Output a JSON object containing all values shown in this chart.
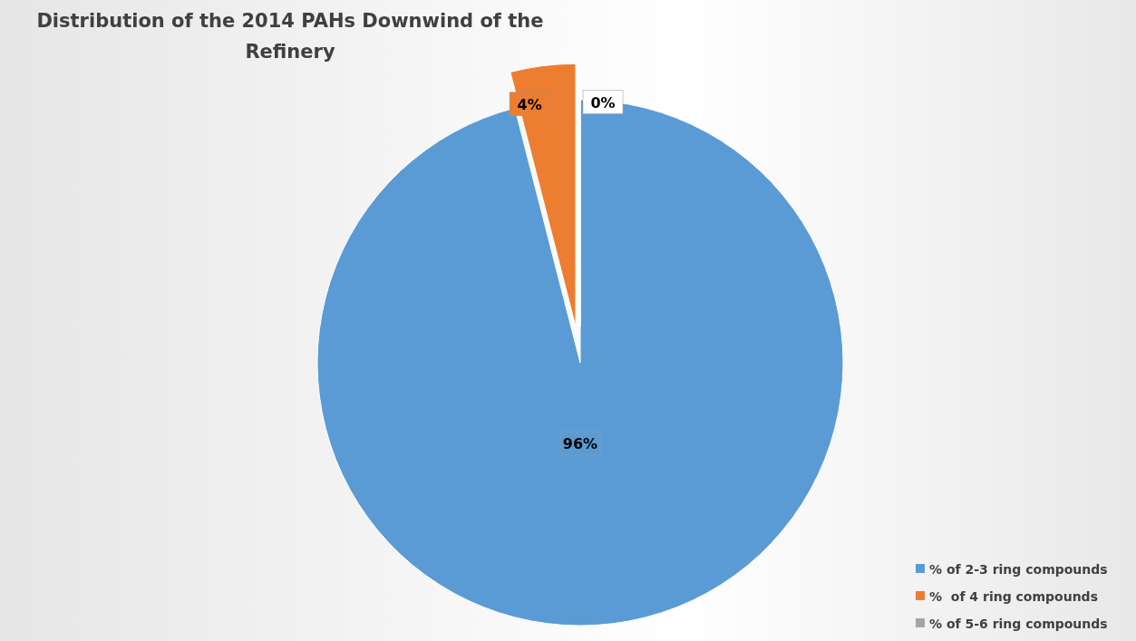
{
  "chart_data": {
    "type": "pie",
    "title": "Distribution of the 2014 PAHs Downwind of the Refinery",
    "categories": [
      "% of 2-3 ring compounds",
      "%  of 4 ring compounds",
      "% of 5-6 ring compounds"
    ],
    "values": [
      96,
      4,
      0
    ],
    "colors": [
      "#5b9bd5",
      "#ed7d31",
      "#a5a5a5"
    ],
    "value_labels": [
      "96%",
      "4%",
      "0%"
    ],
    "legend": "bottom right"
  }
}
